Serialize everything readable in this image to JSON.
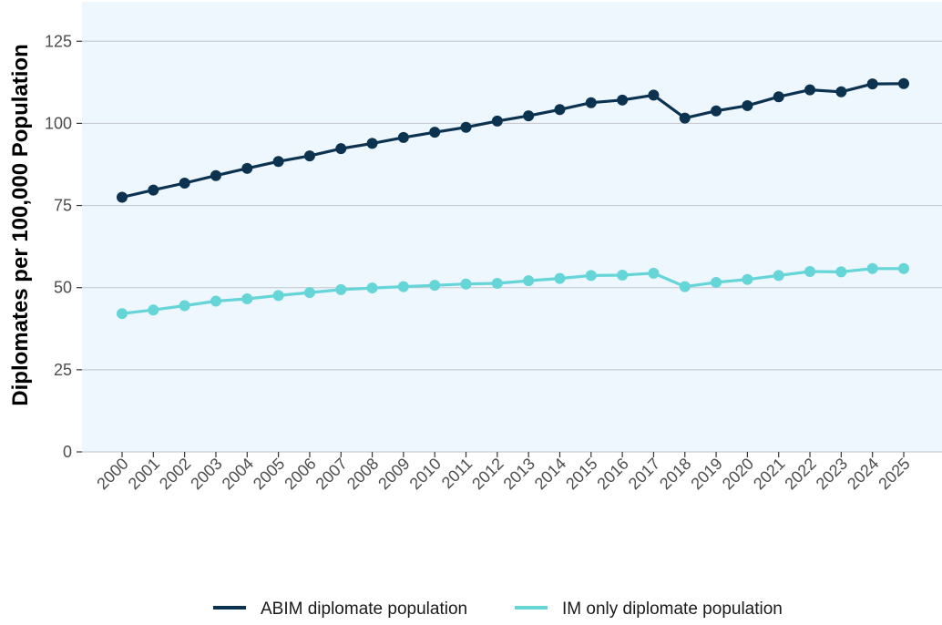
{
  "colors": {
    "panel_background": "#eef6fe",
    "grid": "#c8ccd2",
    "abim": "#0b3350",
    "im_only": "#66d5d8",
    "axis_text": "#4d4d4d"
  },
  "chart_data": {
    "type": "line",
    "title": "",
    "xlabel": "",
    "ylabel": "Diplomates per 100,000 Population",
    "ylim": [
      0,
      137
    ],
    "yticks": [
      0,
      25,
      50,
      75,
      100,
      125
    ],
    "grid": "horizontal",
    "legend_position": "bottom",
    "categories": [
      "2000",
      "2001",
      "2002",
      "2003",
      "2004",
      "2005",
      "2006",
      "2007",
      "2008",
      "2009",
      "2010",
      "2011",
      "2012",
      "2013",
      "2014",
      "2015",
      "2016",
      "2017",
      "2018",
      "2019",
      "2020",
      "2021",
      "2022",
      "2023",
      "2024",
      "2025"
    ],
    "series": [
      {
        "name": "ABIM diplomate population",
        "color": "#0b3350",
        "values": [
          77.5,
          79.7,
          81.8,
          84.1,
          86.3,
          88.4,
          90.1,
          92.3,
          93.9,
          95.7,
          97.3,
          98.8,
          100.7,
          102.3,
          104.2,
          106.3,
          107.1,
          108.6,
          101.6,
          103.8,
          105.4,
          108.1,
          110.2,
          109.6,
          112.0,
          112.1
        ]
      },
      {
        "name": "IM only diplomate population",
        "color": "#66d5d8",
        "values": [
          42.1,
          43.2,
          44.5,
          45.9,
          46.6,
          47.6,
          48.5,
          49.4,
          49.9,
          50.3,
          50.7,
          51.1,
          51.3,
          52.1,
          52.8,
          53.7,
          53.8,
          54.4,
          50.3,
          51.6,
          52.5,
          53.7,
          54.9,
          54.8,
          55.8,
          55.8
        ]
      }
    ]
  }
}
